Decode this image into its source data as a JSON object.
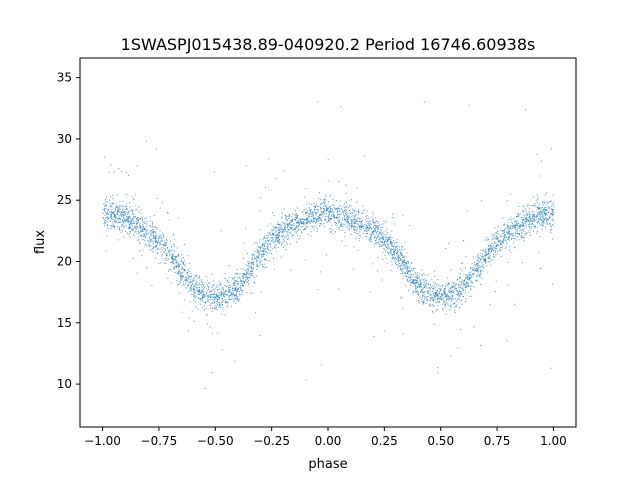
{
  "chart_data": {
    "type": "scatter",
    "title": "1SWASPJ015438.89-040920.2 Period 16746.60938s",
    "xlabel": "phase",
    "ylabel": "flux",
    "xlim": [
      -1.1,
      1.1
    ],
    "ylim": [
      6.5,
      36.6
    ],
    "xticks": [
      -1.0,
      -0.75,
      -0.5,
      -0.25,
      0.0,
      0.25,
      0.5,
      0.75,
      1.0
    ],
    "xtick_labels": [
      "−1.00",
      "−0.75",
      "−0.50",
      "−0.25",
      "0.00",
      "0.25",
      "0.50",
      "0.75",
      "1.00"
    ],
    "yticks": [
      10,
      15,
      20,
      25,
      30,
      35
    ],
    "ytick_labels": [
      "10",
      "15",
      "20",
      "25",
      "30",
      "35"
    ],
    "grid": false,
    "legend": "none",
    "marker_color": "#1f77b4",
    "light_curve": {
      "phase": [
        -1.0,
        -0.9,
        -0.8,
        -0.75,
        -0.7,
        -0.65,
        -0.6,
        -0.55,
        -0.5,
        -0.45,
        -0.4,
        -0.35,
        -0.3,
        -0.25,
        -0.2,
        -0.1,
        0.0,
        0.1,
        0.2,
        0.25,
        0.3,
        0.35,
        0.4,
        0.45,
        0.5,
        0.55,
        0.6,
        0.65,
        0.7,
        0.75,
        0.8,
        0.9,
        1.0
      ],
      "flux": [
        24.0,
        23.6,
        22.4,
        21.6,
        20.5,
        19.2,
        18.0,
        17.4,
        17.2,
        17.4,
        18.0,
        19.3,
        20.8,
        21.8,
        22.6,
        23.5,
        24.0,
        23.5,
        22.6,
        21.8,
        20.8,
        19.3,
        18.0,
        17.4,
        17.2,
        17.4,
        18.0,
        19.2,
        20.5,
        21.6,
        22.4,
        23.6,
        24.0
      ],
      "scatter_spread": 0.6,
      "outlier_range": [
        8,
        35
      ]
    }
  }
}
